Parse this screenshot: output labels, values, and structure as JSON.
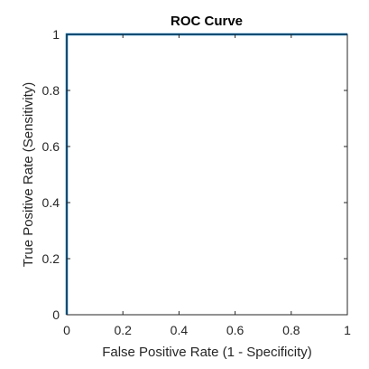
{
  "chart_data": {
    "type": "line",
    "title": "ROC Curve",
    "xlabel": "False Positive Rate (1 - Specificity)",
    "ylabel": "True Positive Rate (Sensitivity)",
    "xlim": [
      0,
      1
    ],
    "ylim": [
      0,
      1
    ],
    "x_ticks": [
      0,
      0.2,
      0.4,
      0.6,
      0.8,
      1
    ],
    "y_ticks": [
      0,
      0.2,
      0.4,
      0.6,
      0.8,
      1
    ],
    "x_tick_labels": [
      "0",
      "0.2",
      "0.4",
      "0.6",
      "0.8",
      "1"
    ],
    "y_tick_labels": [
      "0",
      "0.2",
      "0.4",
      "0.6",
      "0.8",
      "1"
    ],
    "grid": false,
    "series": [
      {
        "x": [
          0,
          0,
          1
        ],
        "y": [
          0,
          1,
          1
        ],
        "color": "#0072BD"
      }
    ]
  }
}
